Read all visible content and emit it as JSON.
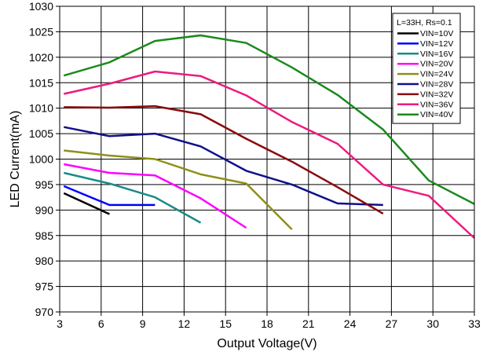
{
  "chart_data": {
    "type": "line",
    "xlabel": "Output Voltage(V)",
    "ylabel": "LED Current(mA)",
    "xlim": [
      3,
      33
    ],
    "ylim": [
      970,
      1030
    ],
    "xticks": [
      "3",
      "6",
      "9",
      "12",
      "15",
      "18",
      "21",
      "24",
      "27",
      "30",
      "33"
    ],
    "yticks": [
      "970",
      "975",
      "980",
      "985",
      "990",
      "995",
      "1000",
      "1005",
      "1010",
      "1015",
      "1020",
      "1025",
      "1030"
    ],
    "grid": true,
    "legend_title": "L=33H, Rs=0.1",
    "legend_position": "top-right",
    "series": [
      {
        "name": "VIN=10V",
        "color": "#000000",
        "points": [
          [
            3.3,
            993.3
          ],
          [
            6.6,
            989.2
          ]
        ]
      },
      {
        "name": "VIN=12V",
        "color": "#0000ff",
        "points": [
          [
            3.3,
            994.7
          ],
          [
            6.6,
            991.0
          ],
          [
            9.9,
            991.0
          ]
        ]
      },
      {
        "name": "VIN=16V",
        "color": "#1a8a8a",
        "points": [
          [
            3.3,
            997.3
          ],
          [
            6.6,
            995.2
          ],
          [
            9.9,
            992.5
          ],
          [
            13.2,
            987.5
          ]
        ]
      },
      {
        "name": "VIN=20V",
        "color": "#ff00ff",
        "points": [
          [
            3.3,
            999.0
          ],
          [
            6.6,
            997.3
          ],
          [
            9.9,
            996.8
          ],
          [
            13.2,
            992.3
          ],
          [
            16.5,
            986.5
          ]
        ]
      },
      {
        "name": "VIN=24V",
        "color": "#8f8f1a",
        "points": [
          [
            3.3,
            1001.7
          ],
          [
            6.6,
            1000.7
          ],
          [
            9.9,
            1000.0
          ],
          [
            13.2,
            997.0
          ],
          [
            16.5,
            995.2
          ],
          [
            19.8,
            986.2
          ]
        ]
      },
      {
        "name": "VIN=28V",
        "color": "#10108a",
        "points": [
          [
            3.3,
            1006.3
          ],
          [
            6.6,
            1004.5
          ],
          [
            9.9,
            1005.0
          ],
          [
            13.2,
            1002.5
          ],
          [
            16.5,
            997.7
          ],
          [
            19.8,
            995.0
          ],
          [
            23.1,
            991.3
          ],
          [
            26.4,
            991.0
          ]
        ]
      },
      {
        "name": "VIN=32V",
        "color": "#8a0a0a",
        "points": [
          [
            3.3,
            1010.2
          ],
          [
            6.6,
            1010.1
          ],
          [
            9.9,
            1010.4
          ],
          [
            13.2,
            1008.8
          ],
          [
            16.5,
            1004.0
          ],
          [
            19.8,
            999.5
          ],
          [
            23.1,
            994.5
          ],
          [
            26.4,
            989.3
          ]
        ]
      },
      {
        "name": "VIN=36V",
        "color": "#ee1a80",
        "points": [
          [
            3.3,
            1012.8
          ],
          [
            6.6,
            1014.8
          ],
          [
            9.9,
            1017.2
          ],
          [
            13.2,
            1016.3
          ],
          [
            16.5,
            1012.5
          ],
          [
            19.8,
            1007.3
          ],
          [
            23.1,
            1003.0
          ],
          [
            26.4,
            995.0
          ],
          [
            29.7,
            992.8
          ],
          [
            33.0,
            984.5
          ]
        ]
      },
      {
        "name": "VIN=40V",
        "color": "#1a8a1a",
        "points": [
          [
            3.3,
            1016.4
          ],
          [
            6.6,
            1019.0
          ],
          [
            9.9,
            1023.2
          ],
          [
            13.2,
            1024.3
          ],
          [
            16.5,
            1022.8
          ],
          [
            19.8,
            1018.0
          ],
          [
            23.1,
            1012.6
          ],
          [
            26.4,
            1005.8
          ],
          [
            29.7,
            995.8
          ],
          [
            33.0,
            991.2
          ]
        ]
      }
    ]
  }
}
